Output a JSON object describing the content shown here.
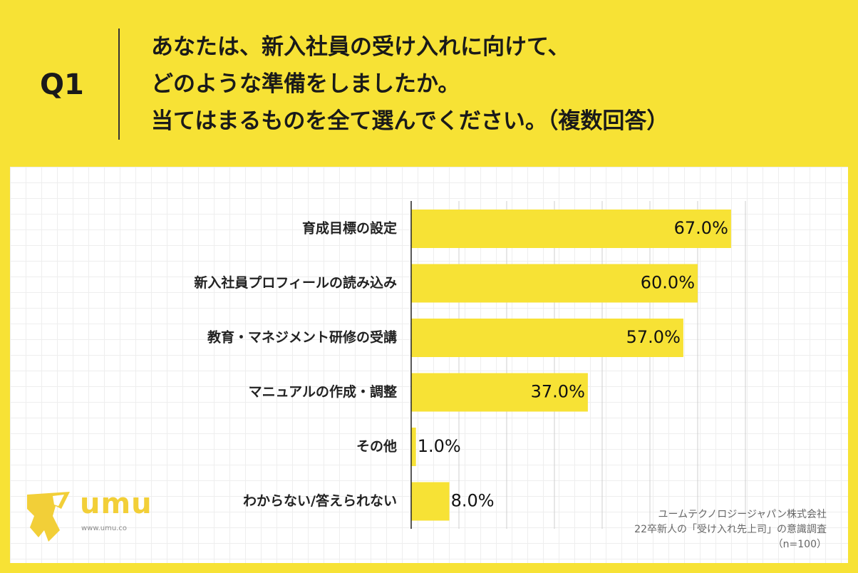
{
  "question": {
    "label": "Q1",
    "lines": [
      "あなたは、新入社員の受け入れに向けて、",
      "どのような準備をしましたか。",
      "当てはまるものを全て選んでください。（複数回答）"
    ]
  },
  "chart_data": {
    "type": "bar",
    "orientation": "horizontal",
    "categories": [
      "育成目標の設定",
      "新入社員プロフィールの読み込み",
      "教育・マネジメント研修の受講",
      "マニュアルの作成・調整",
      "その他",
      "わからない/答えられない"
    ],
    "values": [
      67.0,
      60.0,
      57.0,
      37.0,
      1.0,
      8.0
    ],
    "value_labels": [
      "67.0%",
      "60.0%",
      "57.0%",
      "37.0%",
      "1.0%",
      "8.0%"
    ],
    "unit": "%",
    "xlim": [
      0,
      70
    ],
    "grid": true,
    "bar_color": "#f7e235"
  },
  "logo": {
    "text": "umu",
    "url": "www.umu.co"
  },
  "credit": {
    "lines": [
      "ユームテクノロジージャパン株式会社",
      "22卒新人の「受け入れ先上司」の意識調査",
      "（n=100）"
    ]
  },
  "colors": {
    "background": "#f7e235",
    "bar": "#f7e235",
    "logo": "#f2cf38"
  }
}
